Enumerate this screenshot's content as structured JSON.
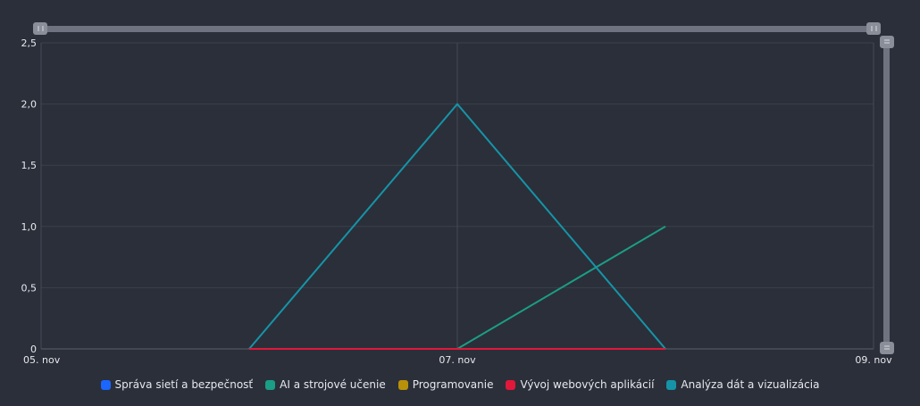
{
  "chart_data": {
    "type": "line",
    "x": [
      "05. nov",
      "06. nov",
      "07. nov",
      "08. nov",
      "09. nov"
    ],
    "x_tick_labels": [
      "05. nov",
      "07. nov",
      "09. nov"
    ],
    "ylim": [
      0,
      2.5
    ],
    "y_ticks": [
      0,
      0.5,
      1,
      1.5,
      2,
      2.5
    ],
    "y_tick_labels": [
      "0",
      "0,5",
      "1,0",
      "1,5",
      "2,0",
      "2,5"
    ],
    "grid": true,
    "legend_position": "bottom",
    "series": [
      {
        "name": "Správa sietí a bezpečnosť",
        "color": "#1a66ff",
        "points": []
      },
      {
        "name": "AI a strojové učenie",
        "color": "#1a9e86",
        "points": [
          [
            "07. nov",
            0
          ],
          [
            "08. nov",
            1
          ]
        ]
      },
      {
        "name": "Programovanie",
        "color": "#b8900a",
        "points": []
      },
      {
        "name": "Vývoj webových aplikácií",
        "color": "#e0183a",
        "points": [
          [
            "06. nov",
            0
          ],
          [
            "07. nov",
            0
          ],
          [
            "08. nov",
            0
          ]
        ]
      },
      {
        "name": "Analýza dát a vizualizácia",
        "color": "#1594a8",
        "points": [
          [
            "06. nov",
            0
          ],
          [
            "07. nov",
            2
          ],
          [
            "08. nov",
            0
          ]
        ]
      }
    ]
  }
}
